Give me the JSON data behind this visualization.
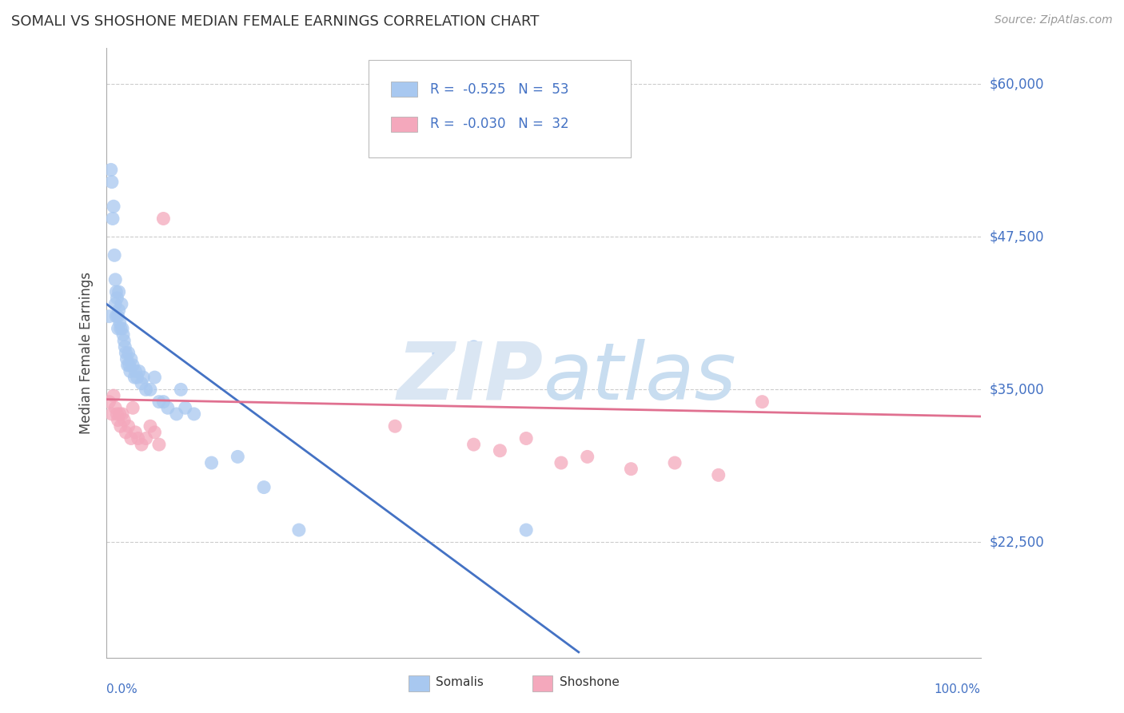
{
  "title": "SOMALI VS SHOSHONE MEDIAN FEMALE EARNINGS CORRELATION CHART",
  "source": "Source: ZipAtlas.com",
  "ylabel": "Median Female Earnings",
  "ytick_labels": [
    "$22,500",
    "$35,000",
    "$47,500",
    "$60,000"
  ],
  "ytick_values": [
    22500,
    35000,
    47500,
    60000
  ],
  "ymin": 13000,
  "ymax": 63000,
  "xmin": 0.0,
  "xmax": 1.0,
  "somali_color": "#a8c8f0",
  "shoshone_color": "#f4a8bc",
  "somali_line_color": "#4472c4",
  "shoshone_line_color": "#e07090",
  "legend_text_color": "#4472c4",
  "legend_label_somali": "Somalis",
  "legend_label_shoshone": "Shoshone",
  "somali_x": [
    0.003,
    0.005,
    0.006,
    0.007,
    0.008,
    0.009,
    0.01,
    0.01,
    0.011,
    0.011,
    0.012,
    0.013,
    0.013,
    0.014,
    0.014,
    0.015,
    0.016,
    0.017,
    0.018,
    0.019,
    0.02,
    0.021,
    0.022,
    0.023,
    0.024,
    0.025,
    0.026,
    0.027,
    0.028,
    0.03,
    0.032,
    0.033,
    0.035,
    0.037,
    0.04,
    0.042,
    0.045,
    0.05,
    0.055,
    0.06,
    0.065,
    0.07,
    0.08,
    0.085,
    0.09,
    0.1,
    0.12,
    0.15,
    0.18,
    0.22,
    0.38,
    0.42,
    0.48
  ],
  "somali_y": [
    41000,
    53000,
    52000,
    49000,
    50000,
    46000,
    44000,
    42000,
    43000,
    41000,
    42500,
    41000,
    40000,
    43000,
    41500,
    40500,
    40000,
    42000,
    40000,
    39500,
    39000,
    38500,
    38000,
    37500,
    37000,
    38000,
    37000,
    36500,
    37500,
    37000,
    36000,
    36500,
    36000,
    36500,
    35500,
    36000,
    35000,
    35000,
    36000,
    34000,
    34000,
    33500,
    33000,
    35000,
    33500,
    33000,
    29000,
    29500,
    27000,
    23500,
    38000,
    38500,
    23500
  ],
  "shoshone_x": [
    0.003,
    0.006,
    0.008,
    0.01,
    0.012,
    0.013,
    0.015,
    0.016,
    0.018,
    0.02,
    0.022,
    0.025,
    0.028,
    0.03,
    0.033,
    0.036,
    0.04,
    0.045,
    0.05,
    0.055,
    0.06,
    0.065,
    0.33,
    0.42,
    0.45,
    0.48,
    0.52,
    0.55,
    0.6,
    0.65,
    0.7,
    0.75
  ],
  "shoshone_y": [
    34000,
    33000,
    34500,
    33500,
    33000,
    32500,
    33000,
    32000,
    33000,
    32500,
    31500,
    32000,
    31000,
    33500,
    31500,
    31000,
    30500,
    31000,
    32000,
    31500,
    30500,
    49000,
    32000,
    30500,
    30000,
    31000,
    29000,
    29500,
    28500,
    29000,
    28000,
    34000
  ],
  "somali_trend_x": [
    0.0,
    0.54
  ],
  "somali_trend_y": [
    42000,
    13500
  ],
  "shoshone_trend_x": [
    0.0,
    1.0
  ],
  "shoshone_trend_y": [
    34200,
    32800
  ],
  "grid_color": "#cccccc",
  "background_color": "#ffffff",
  "title_color": "#333333",
  "ylabel_color": "#444444",
  "tick_color": "#4472c4",
  "source_color": "#999999",
  "watermark_zip_color": "#dae6f3",
  "watermark_atlas_color": "#c8ddf0"
}
